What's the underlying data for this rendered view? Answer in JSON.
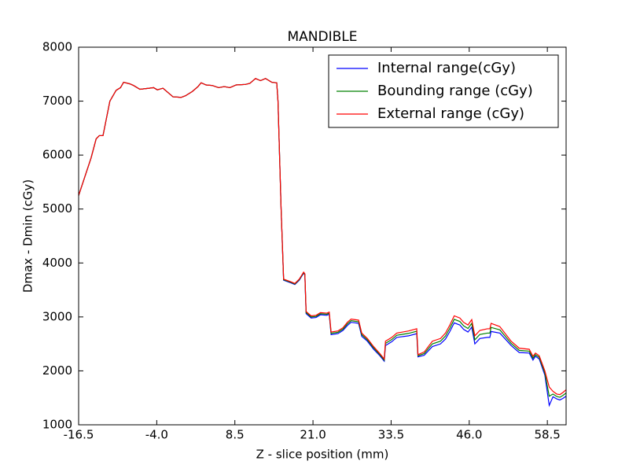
{
  "chart_data": {
    "type": "line",
    "title": "MANDIBLE",
    "x_label": "Z - slice position (mm)",
    "y_label": "Dmax - Dmin (cGy)",
    "xlim": [
      -16.5,
      61.5
    ],
    "ylim": [
      1000,
      8000
    ],
    "xticks": [
      -16.5,
      {
        "value": -4.0,
        "label": "-4.0"
      },
      8.5,
      {
        "value": 21.0,
        "label": "21.0"
      },
      33.5,
      {
        "value": 46.0,
        "label": "46.0"
      },
      58.5
    ],
    "yticks": [
      1000,
      2000,
      3000,
      4000,
      5000,
      6000,
      7000,
      8000
    ],
    "legend": "upper right",
    "x": [
      -16.5,
      -15.5,
      -14.5,
      -13.7,
      -13.2,
      -12.6,
      -11.5,
      -10.5,
      -9.8,
      -9.3,
      -8.3,
      -7.7,
      -6.7,
      -5.2,
      -4.5,
      -3.9,
      -3.0,
      -2.3,
      -1.4,
      -0.1,
      0.6,
      1.7,
      2.6,
      3.1,
      3.9,
      4.9,
      5.9,
      6.8,
      7.7,
      8.7,
      10.2,
      10.9,
      11.8,
      12.6,
      13.4,
      14.4,
      15.2,
      15.4,
      15.9,
      16.3,
      17.5,
      18.1,
      18.8,
      19.5,
      19.7,
      19.9,
      20.7,
      21.5,
      22.2,
      23.2,
      23.6,
      23.9,
      25.0,
      25.8,
      26.5,
      27.1,
      28.3,
      28.8,
      29.7,
      30.7,
      31.7,
      32.4,
      32.6,
      33.6,
      34.4,
      36.3,
      37.6,
      37.8,
      38.8,
      40.1,
      41.4,
      42.2,
      42.9,
      43.6,
      44.5,
      45.1,
      45.8,
      46.4,
      46.9,
      47.7,
      48.9,
      49.3,
      49.5,
      50.9,
      51.7,
      52.7,
      54.0,
      55.6,
      56.2,
      56.6,
      57.2,
      58.1,
      58.8,
      59.4,
      60.0,
      60.5,
      61.0,
      61.5
    ],
    "series": [
      {
        "name": "Internal range(cGy)",
        "color": "#0000ff",
        "values": [
          5250,
          5600,
          5950,
          6300,
          6360,
          6360,
          7000,
          7200,
          7250,
          7350,
          7320,
          7290,
          7220,
          7240,
          7250,
          7210,
          7240,
          7170,
          7080,
          7070,
          7100,
          7180,
          7270,
          7340,
          7300,
          7290,
          7250,
          7270,
          7250,
          7300,
          7310,
          7330,
          7420,
          7380,
          7420,
          7350,
          7340,
          7000,
          5000,
          3680,
          3630,
          3600,
          3680,
          3810,
          3780,
          3060,
          2980,
          2990,
          3040,
          3030,
          3050,
          2670,
          2690,
          2750,
          2840,
          2900,
          2880,
          2640,
          2550,
          2400,
          2280,
          2180,
          2470,
          2540,
          2620,
          2650,
          2690,
          2260,
          2290,
          2450,
          2500,
          2590,
          2730,
          2890,
          2850,
          2770,
          2720,
          2810,
          2500,
          2600,
          2620,
          2620,
          2730,
          2700,
          2600,
          2470,
          2340,
          2330,
          2200,
          2270,
          2220,
          1920,
          1360,
          1520,
          1480,
          1460,
          1490,
          1530
        ]
      },
      {
        "name": "Bounding range (cGy)",
        "color": "#008000",
        "values": [
          5250,
          5600,
          5950,
          6300,
          6360,
          6360,
          7000,
          7200,
          7250,
          7350,
          7320,
          7290,
          7220,
          7240,
          7250,
          7210,
          7240,
          7170,
          7080,
          7070,
          7100,
          7180,
          7270,
          7340,
          7300,
          7290,
          7250,
          7270,
          7250,
          7300,
          7310,
          7330,
          7420,
          7380,
          7420,
          7350,
          7340,
          7000,
          5000,
          3690,
          3640,
          3610,
          3690,
          3820,
          3790,
          3080,
          3000,
          3010,
          3060,
          3050,
          3070,
          2695,
          2715,
          2775,
          2870,
          2930,
          2910,
          2670,
          2575,
          2425,
          2300,
          2200,
          2510,
          2580,
          2660,
          2695,
          2735,
          2280,
          2320,
          2500,
          2550,
          2645,
          2790,
          2955,
          2915,
          2835,
          2785,
          2880,
          2575,
          2675,
          2700,
          2700,
          2805,
          2760,
          2650,
          2510,
          2380,
          2365,
          2235,
          2300,
          2250,
          1960,
          1530,
          1570,
          1525,
          1510,
          1545,
          1590
        ]
      },
      {
        "name": "External range (cGy)",
        "color": "#ff0000",
        "values": [
          5250,
          5600,
          5950,
          6300,
          6360,
          6360,
          7000,
          7200,
          7250,
          7350,
          7320,
          7290,
          7220,
          7240,
          7250,
          7210,
          7240,
          7170,
          7080,
          7070,
          7100,
          7180,
          7270,
          7340,
          7300,
          7290,
          7250,
          7270,
          7250,
          7300,
          7310,
          7330,
          7420,
          7380,
          7420,
          7350,
          7340,
          7000,
          5000,
          3700,
          3650,
          3620,
          3700,
          3830,
          3800,
          3100,
          3020,
          3030,
          3080,
          3070,
          3090,
          2720,
          2740,
          2800,
          2900,
          2960,
          2940,
          2700,
          2600,
          2450,
          2320,
          2220,
          2550,
          2620,
          2700,
          2740,
          2780,
          2300,
          2350,
          2550,
          2600,
          2700,
          2850,
          3020,
          2980,
          2900,
          2850,
          2950,
          2650,
          2750,
          2780,
          2780,
          2880,
          2820,
          2700,
          2550,
          2420,
          2400,
          2270,
          2330,
          2280,
          2000,
          1700,
          1620,
          1570,
          1560,
          1600,
          1650
        ]
      }
    ]
  }
}
